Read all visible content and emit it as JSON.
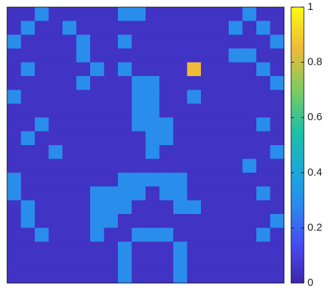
{
  "chart_data": {
    "type": "heatmap",
    "colormap": "parula",
    "zlim": [
      0,
      1
    ],
    "zticks": [
      0,
      0.2,
      0.4,
      0.6,
      0.8,
      1
    ],
    "values": [
      [
        0.05,
        0.05,
        0.3,
        0.05,
        0.05,
        0.05,
        0.05,
        0.05,
        0.3,
        0.3,
        0.05,
        0.05,
        0.05,
        0.05,
        0.05,
        0.05,
        0.05,
        0.3,
        0.05,
        0.05
      ],
      [
        0.05,
        0.3,
        0.05,
        0.05,
        0.3,
        0.05,
        0.05,
        0.05,
        0.05,
        0.05,
        0.05,
        0.05,
        0.05,
        0.05,
        0.05,
        0.05,
        0.3,
        0.05,
        0.3,
        0.05
      ],
      [
        0.3,
        0.05,
        0.05,
        0.05,
        0.05,
        0.3,
        0.05,
        0.05,
        0.3,
        0.05,
        0.05,
        0.05,
        0.05,
        0.05,
        0.05,
        0.05,
        0.05,
        0.05,
        0.05,
        0.3
      ],
      [
        0.05,
        0.05,
        0.05,
        0.05,
        0.05,
        0.3,
        0.05,
        0.05,
        0.05,
        0.05,
        0.05,
        0.05,
        0.05,
        0.05,
        0.05,
        0.05,
        0.3,
        0.3,
        0.05,
        0.05
      ],
      [
        0.05,
        0.3,
        0.05,
        0.05,
        0.05,
        0.05,
        0.3,
        0.05,
        0.3,
        0.05,
        0.05,
        0.05,
        0.05,
        0.85,
        0.05,
        0.05,
        0.05,
        0.05,
        0.3,
        0.05
      ],
      [
        0.05,
        0.05,
        0.05,
        0.05,
        0.05,
        0.3,
        0.05,
        0.05,
        0.05,
        0.3,
        0.3,
        0.05,
        0.05,
        0.05,
        0.05,
        0.05,
        0.05,
        0.05,
        0.05,
        0.3
      ],
      [
        0.3,
        0.05,
        0.05,
        0.05,
        0.05,
        0.05,
        0.05,
        0.05,
        0.05,
        0.3,
        0.3,
        0.05,
        0.05,
        0.3,
        0.05,
        0.05,
        0.05,
        0.05,
        0.05,
        0.05
      ],
      [
        0.05,
        0.05,
        0.05,
        0.05,
        0.05,
        0.05,
        0.05,
        0.05,
        0.05,
        0.3,
        0.3,
        0.05,
        0.05,
        0.05,
        0.05,
        0.05,
        0.05,
        0.05,
        0.05,
        0.05
      ],
      [
        0.05,
        0.05,
        0.3,
        0.05,
        0.05,
        0.05,
        0.05,
        0.05,
        0.05,
        0.3,
        0.3,
        0.3,
        0.05,
        0.05,
        0.05,
        0.05,
        0.05,
        0.05,
        0.3,
        0.05
      ],
      [
        0.05,
        0.3,
        0.05,
        0.05,
        0.05,
        0.05,
        0.05,
        0.05,
        0.05,
        0.05,
        0.3,
        0.3,
        0.05,
        0.05,
        0.05,
        0.05,
        0.05,
        0.05,
        0.05,
        0.05
      ],
      [
        0.05,
        0.05,
        0.05,
        0.3,
        0.05,
        0.05,
        0.05,
        0.05,
        0.05,
        0.05,
        0.3,
        0.05,
        0.05,
        0.05,
        0.05,
        0.05,
        0.05,
        0.05,
        0.05,
        0.3
      ],
      [
        0.05,
        0.05,
        0.05,
        0.05,
        0.05,
        0.05,
        0.05,
        0.05,
        0.05,
        0.05,
        0.05,
        0.05,
        0.05,
        0.05,
        0.05,
        0.05,
        0.05,
        0.3,
        0.05,
        0.05
      ],
      [
        0.3,
        0.05,
        0.05,
        0.05,
        0.05,
        0.05,
        0.05,
        0.05,
        0.3,
        0.3,
        0.3,
        0.3,
        0.3,
        0.05,
        0.05,
        0.05,
        0.05,
        0.05,
        0.05,
        0.05
      ],
      [
        0.3,
        0.05,
        0.05,
        0.05,
        0.05,
        0.05,
        0.3,
        0.3,
        0.3,
        0.3,
        0.05,
        0.3,
        0.3,
        0.05,
        0.05,
        0.05,
        0.05,
        0.05,
        0.3,
        0.05
      ],
      [
        0.05,
        0.3,
        0.05,
        0.05,
        0.05,
        0.05,
        0.3,
        0.3,
        0.3,
        0.05,
        0.05,
        0.05,
        0.3,
        0.3,
        0.05,
        0.05,
        0.05,
        0.05,
        0.05,
        0.05
      ],
      [
        0.05,
        0.3,
        0.05,
        0.05,
        0.05,
        0.05,
        0.3,
        0.3,
        0.05,
        0.05,
        0.05,
        0.05,
        0.05,
        0.05,
        0.05,
        0.05,
        0.05,
        0.05,
        0.05,
        0.3
      ],
      [
        0.05,
        0.05,
        0.3,
        0.05,
        0.05,
        0.05,
        0.3,
        0.05,
        0.05,
        0.3,
        0.3,
        0.3,
        0.05,
        0.05,
        0.05,
        0.05,
        0.05,
        0.05,
        0.3,
        0.05
      ],
      [
        0.05,
        0.05,
        0.05,
        0.05,
        0.05,
        0.05,
        0.05,
        0.05,
        0.3,
        0.05,
        0.05,
        0.05,
        0.3,
        0.05,
        0.05,
        0.05,
        0.05,
        0.05,
        0.05,
        0.05
      ],
      [
        0.05,
        0.05,
        0.05,
        0.05,
        0.05,
        0.05,
        0.05,
        0.05,
        0.3,
        0.05,
        0.05,
        0.05,
        0.3,
        0.05,
        0.05,
        0.05,
        0.05,
        0.05,
        0.05,
        0.05
      ],
      [
        0.05,
        0.05,
        0.05,
        0.05,
        0.05,
        0.05,
        0.05,
        0.05,
        0.3,
        0.05,
        0.05,
        0.05,
        0.3,
        0.05,
        0.05,
        0.05,
        0.05,
        0.05,
        0.05,
        0.05
      ]
    ]
  }
}
